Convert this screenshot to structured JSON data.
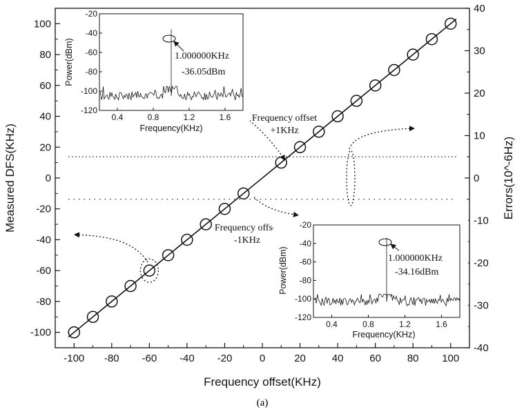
{
  "chart_data": {
    "type": "scatter",
    "caption": "(a)",
    "xlabel": "Frequency offset(KHz)",
    "ylabel": "Measured DFS(KHz)",
    "y2label": "Errors(10^-6Hz)",
    "xlim": [
      -110,
      110
    ],
    "ylim": [
      -110,
      110
    ],
    "y2lim": [
      -40,
      40
    ],
    "xticks": [
      -100,
      -80,
      -60,
      -40,
      -20,
      0,
      20,
      40,
      60,
      80,
      100
    ],
    "yticks": [
      -100,
      -80,
      -60,
      -40,
      -20,
      0,
      20,
      40,
      60,
      80,
      100
    ],
    "y2ticks": [
      -40,
      -30,
      -20,
      -10,
      0,
      10,
      20,
      30,
      40
    ],
    "measured_dfs": {
      "x": [
        -100,
        -90,
        -80,
        -70,
        -60,
        -50,
        -40,
        -30,
        -20,
        -10,
        10,
        20,
        30,
        40,
        50,
        60,
        70,
        80,
        90,
        100
      ],
      "y": [
        -100,
        -90,
        -80,
        -70,
        -60,
        -50,
        -40,
        -30,
        -20,
        -10,
        10,
        20,
        30,
        40,
        50,
        60,
        70,
        80,
        90,
        100
      ]
    },
    "fit_line": {
      "x": [
        -103,
        103
      ],
      "y": [
        -103,
        103
      ]
    },
    "errors": {
      "upper_value": 5,
      "lower_value": -5,
      "upper_x_range": [
        -103,
        103
      ],
      "lower_x_range": [
        -103,
        103
      ]
    },
    "grid": false,
    "annotations": [
      {
        "text": "Frequency offset",
        "text2": "+1KHz"
      },
      {
        "text": "Frequency offset",
        "text2": "-1KHz"
      }
    ],
    "insets": [
      {
        "type": "line",
        "xlabel": "Frequency(KHz)",
        "ylabel": "Power(dBm)",
        "xlim": [
          0.2,
          1.8
        ],
        "ylim": [
          -120,
          -20
        ],
        "xticks": [
          0.4,
          0.8,
          1.2,
          1.6
        ],
        "yticks": [
          -20,
          -40,
          -60,
          -80,
          -100,
          -120
        ],
        "xtick_labels": [
          "0.4",
          "0.8",
          "1.2",
          "1.6"
        ],
        "peak": {
          "x": 1.0,
          "y": -36.05
        },
        "peak_label_line1": "1.000000KHz",
        "peak_label_line2": "-36.05dBm",
        "noise_floor": -105
      },
      {
        "type": "line",
        "xlabel": "Frequency(KHz)",
        "ylabel": "Power(dBm)",
        "xlim": [
          0.2,
          1.8
        ],
        "ylim": [
          -120,
          -20
        ],
        "xticks": [
          0.4,
          0.8,
          1.2,
          1.6
        ],
        "yticks": [
          -20,
          -40,
          -60,
          -80,
          -100,
          -120
        ],
        "xtick_labels": [
          "0.4",
          "0.8",
          "1.2",
          "1.6"
        ],
        "peak": {
          "x": 1.0,
          "y": -34.16
        },
        "peak_label_line1": "1.000000KHz",
        "peak_label_line2": "-34.16dBm",
        "noise_floor": -103
      }
    ]
  }
}
